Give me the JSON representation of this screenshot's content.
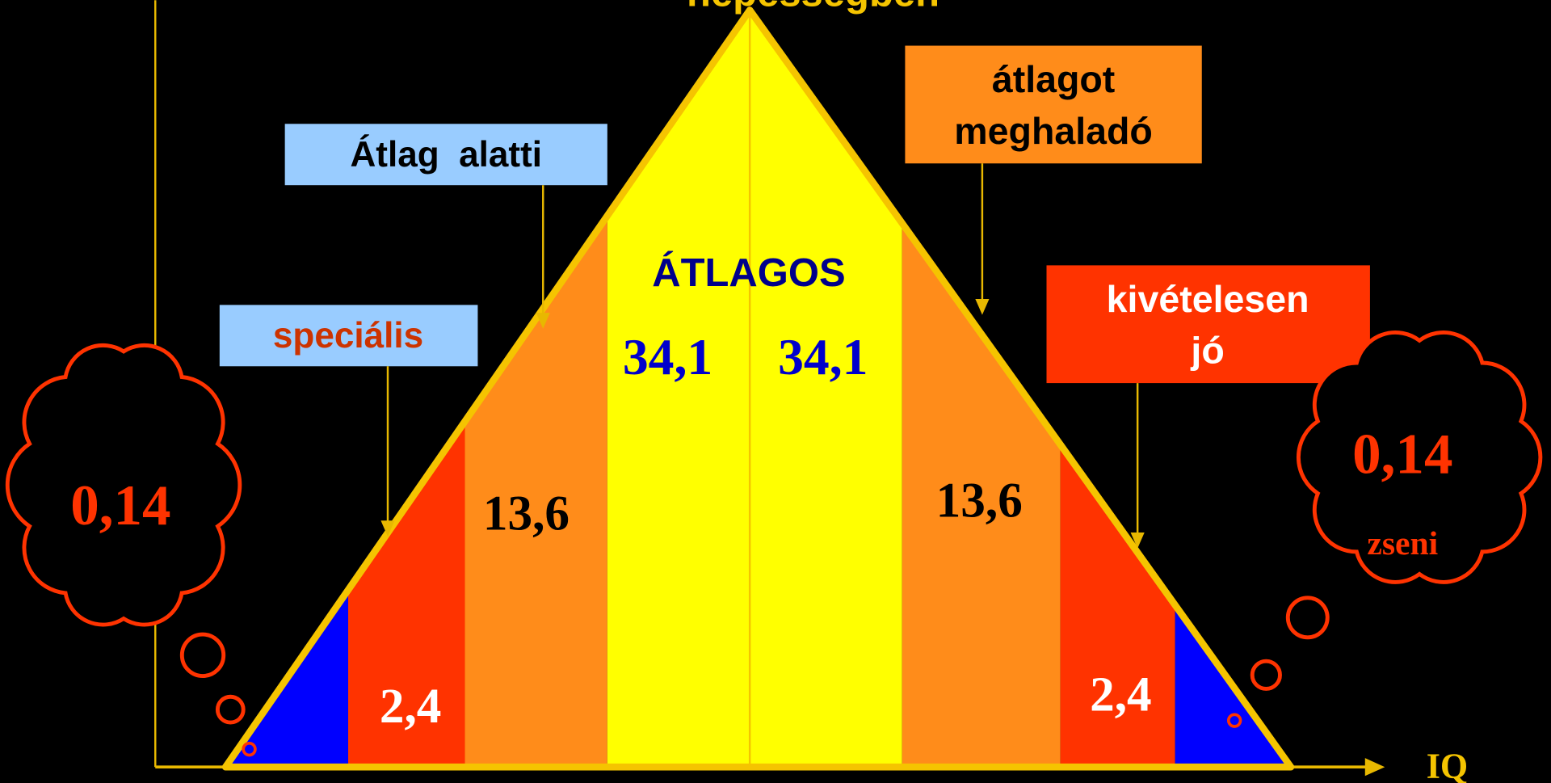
{
  "title": "népességben",
  "axis_label": "IQ",
  "center_label": "ÁTLAGOS",
  "segments": [
    "2,4",
    "13,6",
    "34,1",
    "34,1",
    "13,6",
    "2,4"
  ],
  "tails": {
    "left": {
      "value": "0,14"
    },
    "right": {
      "value": "0,14",
      "caption": "zseni"
    }
  },
  "callouts": {
    "special": "speciális",
    "below_average": "Átlag  alatti",
    "above_average": [
      "átlagot",
      "meghaladó"
    ],
    "exceptional": [
      "kivételesen",
      "jó"
    ]
  }
}
